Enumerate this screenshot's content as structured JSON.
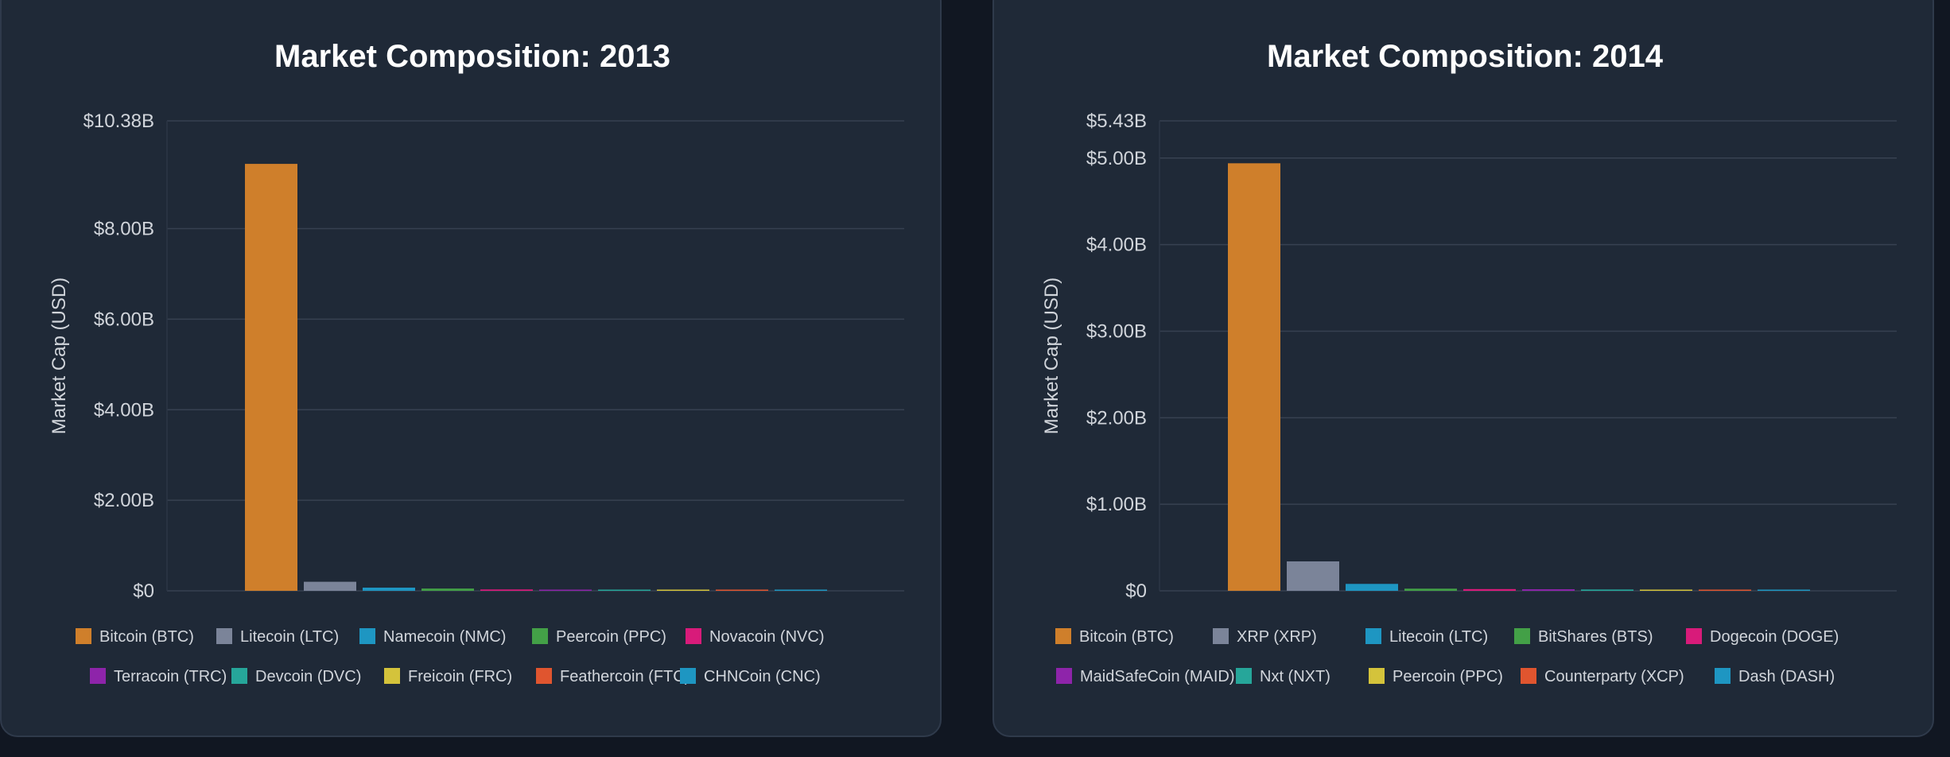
{
  "chart_data": [
    {
      "type": "bar",
      "title": "Market Composition: 2013",
      "xlabel": "",
      "ylabel": "Market Cap (USD)",
      "ylim": [
        0,
        10.38
      ],
      "y_unit": "billions USD",
      "y_ticks": [
        0,
        2,
        4,
        6,
        8,
        10.38
      ],
      "y_tick_labels": [
        "$0",
        "$2.00B",
        "$4.00B",
        "$6.00B",
        "$8.00B",
        "$10.38B"
      ],
      "grid": true,
      "legend_position": "bottom",
      "categories": [
        "Bitcoin (BTC)",
        "Litecoin (LTC)",
        "Namecoin (NMC)",
        "Peercoin (PPC)",
        "Novacoin (NVC)",
        "Terracoin (TRC)",
        "Devcoin (DVC)",
        "Freicoin (FRC)",
        "Feathercoin (FTC)",
        "CHNCoin (CNC)"
      ],
      "values": [
        9.43,
        0.2,
        0.07,
        0.05,
        0.03,
        0.02,
        0.02,
        0.01,
        0.01,
        0.005
      ],
      "colors": [
        "#cf7f2b",
        "#7b8499",
        "#1e96c2",
        "#43a047",
        "#d81b7a",
        "#8e24aa",
        "#26a69a",
        "#d4c33b",
        "#e0552f",
        "#1e96c2"
      ]
    },
    {
      "type": "bar",
      "title": "Market Composition: 2014",
      "xlabel": "",
      "ylabel": "Market Cap (USD)",
      "ylim": [
        0,
        5.43
      ],
      "y_unit": "billions USD",
      "y_ticks": [
        0,
        1,
        2,
        3,
        4,
        5,
        5.43
      ],
      "y_tick_labels": [
        "$0",
        "$1.00B",
        "$2.00B",
        "$3.00B",
        "$4.00B",
        "$5.00B",
        "$5.43B"
      ],
      "grid": true,
      "legend_position": "bottom",
      "categories": [
        "Bitcoin (BTC)",
        "XRP (XRP)",
        "Litecoin (LTC)",
        "BitShares (BTS)",
        "Dogecoin (DOGE)",
        "MaidSafeCoin (MAID)",
        "Nxt (NXT)",
        "Peercoin (PPC)",
        "Counterparty (XCP)",
        "Dash (DASH)"
      ],
      "values": [
        4.94,
        0.34,
        0.08,
        0.025,
        0.02,
        0.018,
        0.015,
        0.012,
        0.01,
        0.01
      ],
      "colors": [
        "#cf7f2b",
        "#7b8499",
        "#1e96c2",
        "#43a047",
        "#d81b7a",
        "#8e24aa",
        "#26a69a",
        "#d4c33b",
        "#e0552f",
        "#1e96c2"
      ]
    }
  ]
}
